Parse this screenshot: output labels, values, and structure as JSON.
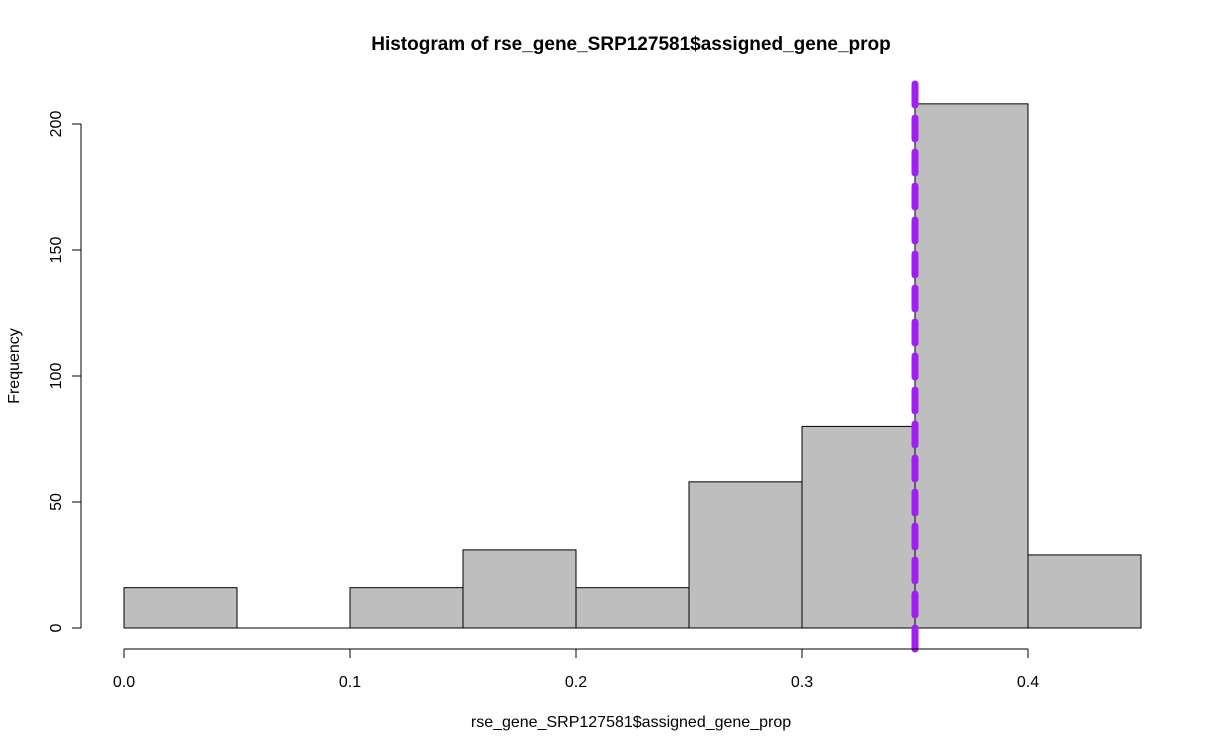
{
  "chart_data": {
    "type": "bar",
    "title": "Histogram of rse_gene_SRP127581$assigned_gene_prop",
    "xlabel": "rse_gene_SRP127581$assigned_gene_prop",
    "ylabel": "Frequency",
    "bins": [
      {
        "start": 0.0,
        "end": 0.05,
        "count": 16
      },
      {
        "start": 0.05,
        "end": 0.1,
        "count": 0
      },
      {
        "start": 0.1,
        "end": 0.15,
        "count": 16
      },
      {
        "start": 0.15,
        "end": 0.2,
        "count": 31
      },
      {
        "start": 0.2,
        "end": 0.25,
        "count": 16
      },
      {
        "start": 0.25,
        "end": 0.3,
        "count": 58
      },
      {
        "start": 0.3,
        "end": 0.35,
        "count": 80
      },
      {
        "start": 0.35,
        "end": 0.4,
        "count": 208
      },
      {
        "start": 0.4,
        "end": 0.45,
        "count": 29
      }
    ],
    "xlim": [
      0,
      0.45
    ],
    "ylim": [
      0,
      215
    ],
    "x_ticks": [
      0.0,
      0.1,
      0.2,
      0.3,
      0.4
    ],
    "x_tick_labels": [
      "0.0",
      "0.1",
      "0.2",
      "0.3",
      "0.4"
    ],
    "y_ticks": [
      0,
      50,
      100,
      150,
      200
    ],
    "y_tick_labels": [
      "0",
      "50",
      "100",
      "150",
      "200"
    ],
    "vline": {
      "x": 0.35,
      "color": "#a020f0",
      "style": "dashed"
    },
    "bar_color": "#bebebe",
    "grid": false
  }
}
